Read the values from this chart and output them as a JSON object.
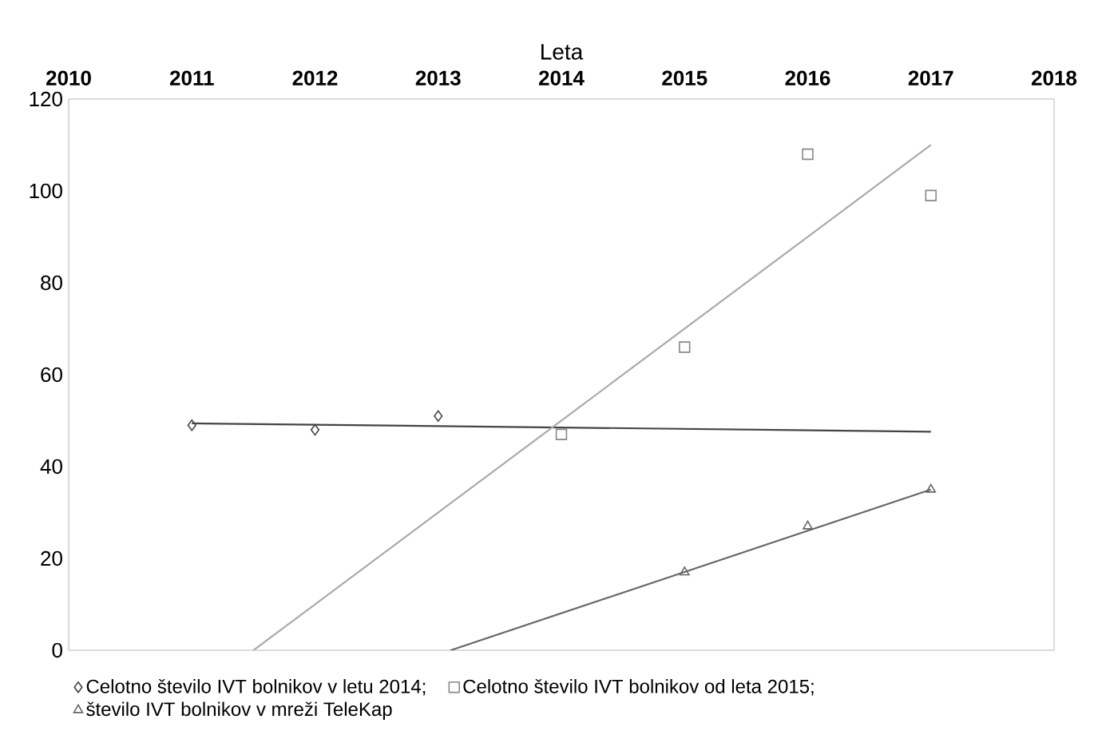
{
  "chart_data": {
    "type": "scatter",
    "xlabel": "Leta",
    "xlim": [
      2010,
      2018
    ],
    "xticks": [
      2010,
      2011,
      2012,
      2013,
      2014,
      2015,
      2016,
      2017,
      2018
    ],
    "ylim": [
      0,
      120
    ],
    "yticks": [
      0,
      20,
      40,
      60,
      80,
      100,
      120
    ],
    "grid": false,
    "legend": "bottom",
    "series": [
      {
        "name": "Celotno število IVT bolnikov v letu 2014;",
        "marker": "diamond",
        "color": "#444444",
        "x": [
          2011,
          2012,
          2013
        ],
        "values": [
          49,
          48,
          51
        ]
      },
      {
        "name": "Celotno število IVT bolnikov od leta 2015;",
        "marker": "square",
        "color": "#888888",
        "x": [
          2014,
          2015,
          2016,
          2017
        ],
        "values": [
          47,
          66,
          108,
          99
        ]
      },
      {
        "name": "število IVT bolnikov v mreži TeleKap",
        "marker": "triangle",
        "color": "#666666",
        "x": [
          2015,
          2016,
          2017
        ],
        "values": [
          17,
          27,
          35
        ]
      },
      {
        "type": "line",
        "marker": "none",
        "line_style": "solid",
        "color": "#444444",
        "x": [
          2011,
          2017
        ],
        "values": [
          49.4,
          47.6
        ]
      },
      {
        "type": "line",
        "marker": "none",
        "line_style": "solid",
        "color": "#aaaaaa",
        "x": [
          2011.5,
          2017
        ],
        "values": [
          0,
          110
        ]
      },
      {
        "type": "line",
        "marker": "none",
        "line_style": "solid",
        "color": "#666666",
        "x": [
          2013.1,
          2017
        ],
        "values": [
          0,
          35
        ]
      }
    ]
  }
}
